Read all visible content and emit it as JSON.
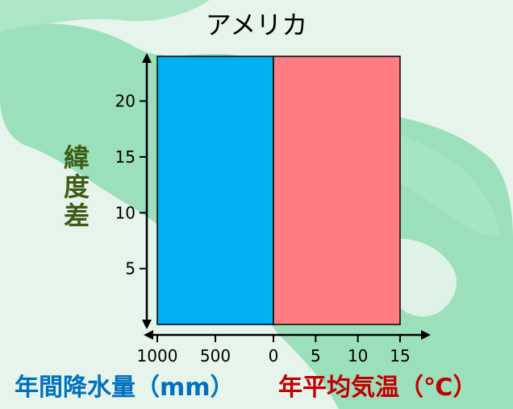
{
  "colors": {
    "background": "#e6f4ec",
    "land": "#7fd9a8",
    "precip_bar": "#00b0f0",
    "temp_bar": "#ff7c80",
    "ylabel": "#3d5c16",
    "precip_label": "#0070c0",
    "temp_label": "#c00000"
  },
  "chart_data": {
    "type": "bar",
    "title": "アメリカ",
    "ylabel": "緯度差",
    "ylim": [
      0,
      24
    ],
    "yticks": [
      5,
      10,
      15,
      20
    ],
    "left_axis": {
      "label": "年間降水量（mm）",
      "ticks": [
        1000,
        500,
        0
      ],
      "range": [
        1000,
        0
      ]
    },
    "right_axis": {
      "label": "年平均気温（℃）",
      "ticks": [
        0,
        5,
        10,
        15
      ],
      "range": [
        0,
        15
      ]
    },
    "series": [
      {
        "color": "#00b0f0",
        "side": "precipitation",
        "values": [
          1000
        ]
      },
      {
        "color": "#ff7c80",
        "side": "temperature",
        "values": [
          15
        ]
      }
    ]
  }
}
